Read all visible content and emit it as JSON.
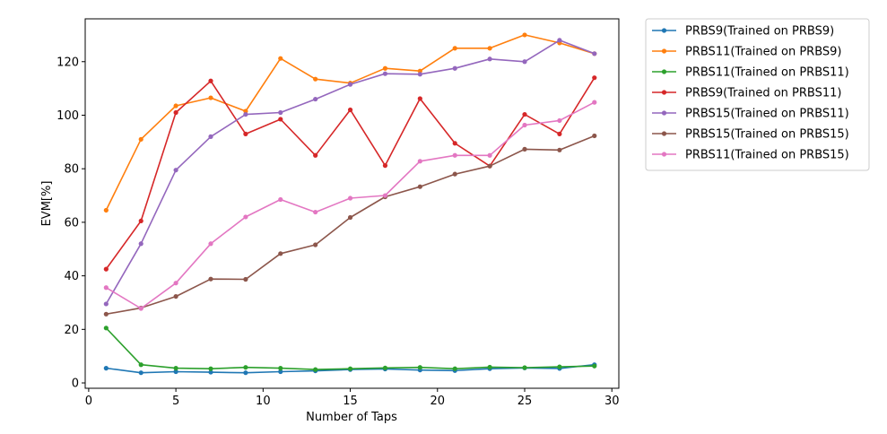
{
  "chart_data": {
    "type": "line",
    "title": "",
    "xlabel": "Number of Taps",
    "ylabel": "EVM[%]",
    "xlim": [
      -0.2,
      30.4
    ],
    "ylim": [
      -2,
      136
    ],
    "xticks": [
      0,
      5,
      10,
      15,
      20,
      25,
      30
    ],
    "yticks": [
      0,
      20,
      40,
      60,
      80,
      100,
      120
    ],
    "grid": false,
    "legend_position": "outside-right-top",
    "x": [
      1,
      3,
      5,
      7,
      9,
      11,
      13,
      15,
      17,
      19,
      21,
      23,
      25,
      27,
      29
    ],
    "series": [
      {
        "name": "PRBS9(Trained on PRBS9)",
        "color": "#1f77b4",
        "values": [
          5.5,
          3.8,
          4.2,
          4.0,
          3.8,
          4.2,
          4.5,
          5.0,
          5.2,
          4.8,
          4.6,
          5.3,
          5.6,
          5.4,
          6.8
        ]
      },
      {
        "name": "PRBS11(Trained on PRBS9)",
        "color": "#ff7f0e",
        "values": [
          64.5,
          91.0,
          103.5,
          106.5,
          101.5,
          121.2,
          113.5,
          112.0,
          117.5,
          116.5,
          125.0,
          125.0,
          130.0,
          127.0,
          123.0
        ]
      },
      {
        "name": "PRBS11(Trained on PRBS11)",
        "color": "#2ca02c",
        "values": [
          20.5,
          6.8,
          5.5,
          5.3,
          5.8,
          5.5,
          5.0,
          5.3,
          5.6,
          5.8,
          5.3,
          5.9,
          5.7,
          6.0,
          6.3
        ]
      },
      {
        "name": "PRBS9(Trained on PRBS11)",
        "color": "#d62728",
        "values": [
          42.5,
          60.5,
          101.0,
          112.8,
          93.0,
          98.5,
          85.0,
          102.0,
          81.2,
          106.2,
          89.5,
          81.0,
          100.3,
          93.0,
          114.0
        ]
      },
      {
        "name": "PRBS15(Trained on PRBS11)",
        "color": "#9467bd",
        "values": [
          29.5,
          52.0,
          79.5,
          92.0,
          100.3,
          101.0,
          106.0,
          111.5,
          115.5,
          115.3,
          117.5,
          121.0,
          120.0,
          128.0,
          123.0
        ]
      },
      {
        "name": "PRBS15(Trained on PRBS15)",
        "color": "#8c564b",
        "values": [
          25.7,
          28.0,
          32.3,
          38.8,
          38.7,
          48.3,
          51.6,
          61.8,
          69.5,
          73.3,
          78.0,
          81.0,
          87.3,
          87.0,
          92.3
        ]
      },
      {
        "name": "PRBS11(Trained on PRBS15)",
        "color": "#e377c2",
        "values": [
          35.6,
          27.8,
          37.3,
          52.0,
          62.0,
          68.5,
          63.8,
          69.0,
          70.0,
          82.8,
          85.0,
          85.0,
          96.3,
          98.0,
          104.8
        ]
      }
    ]
  }
}
